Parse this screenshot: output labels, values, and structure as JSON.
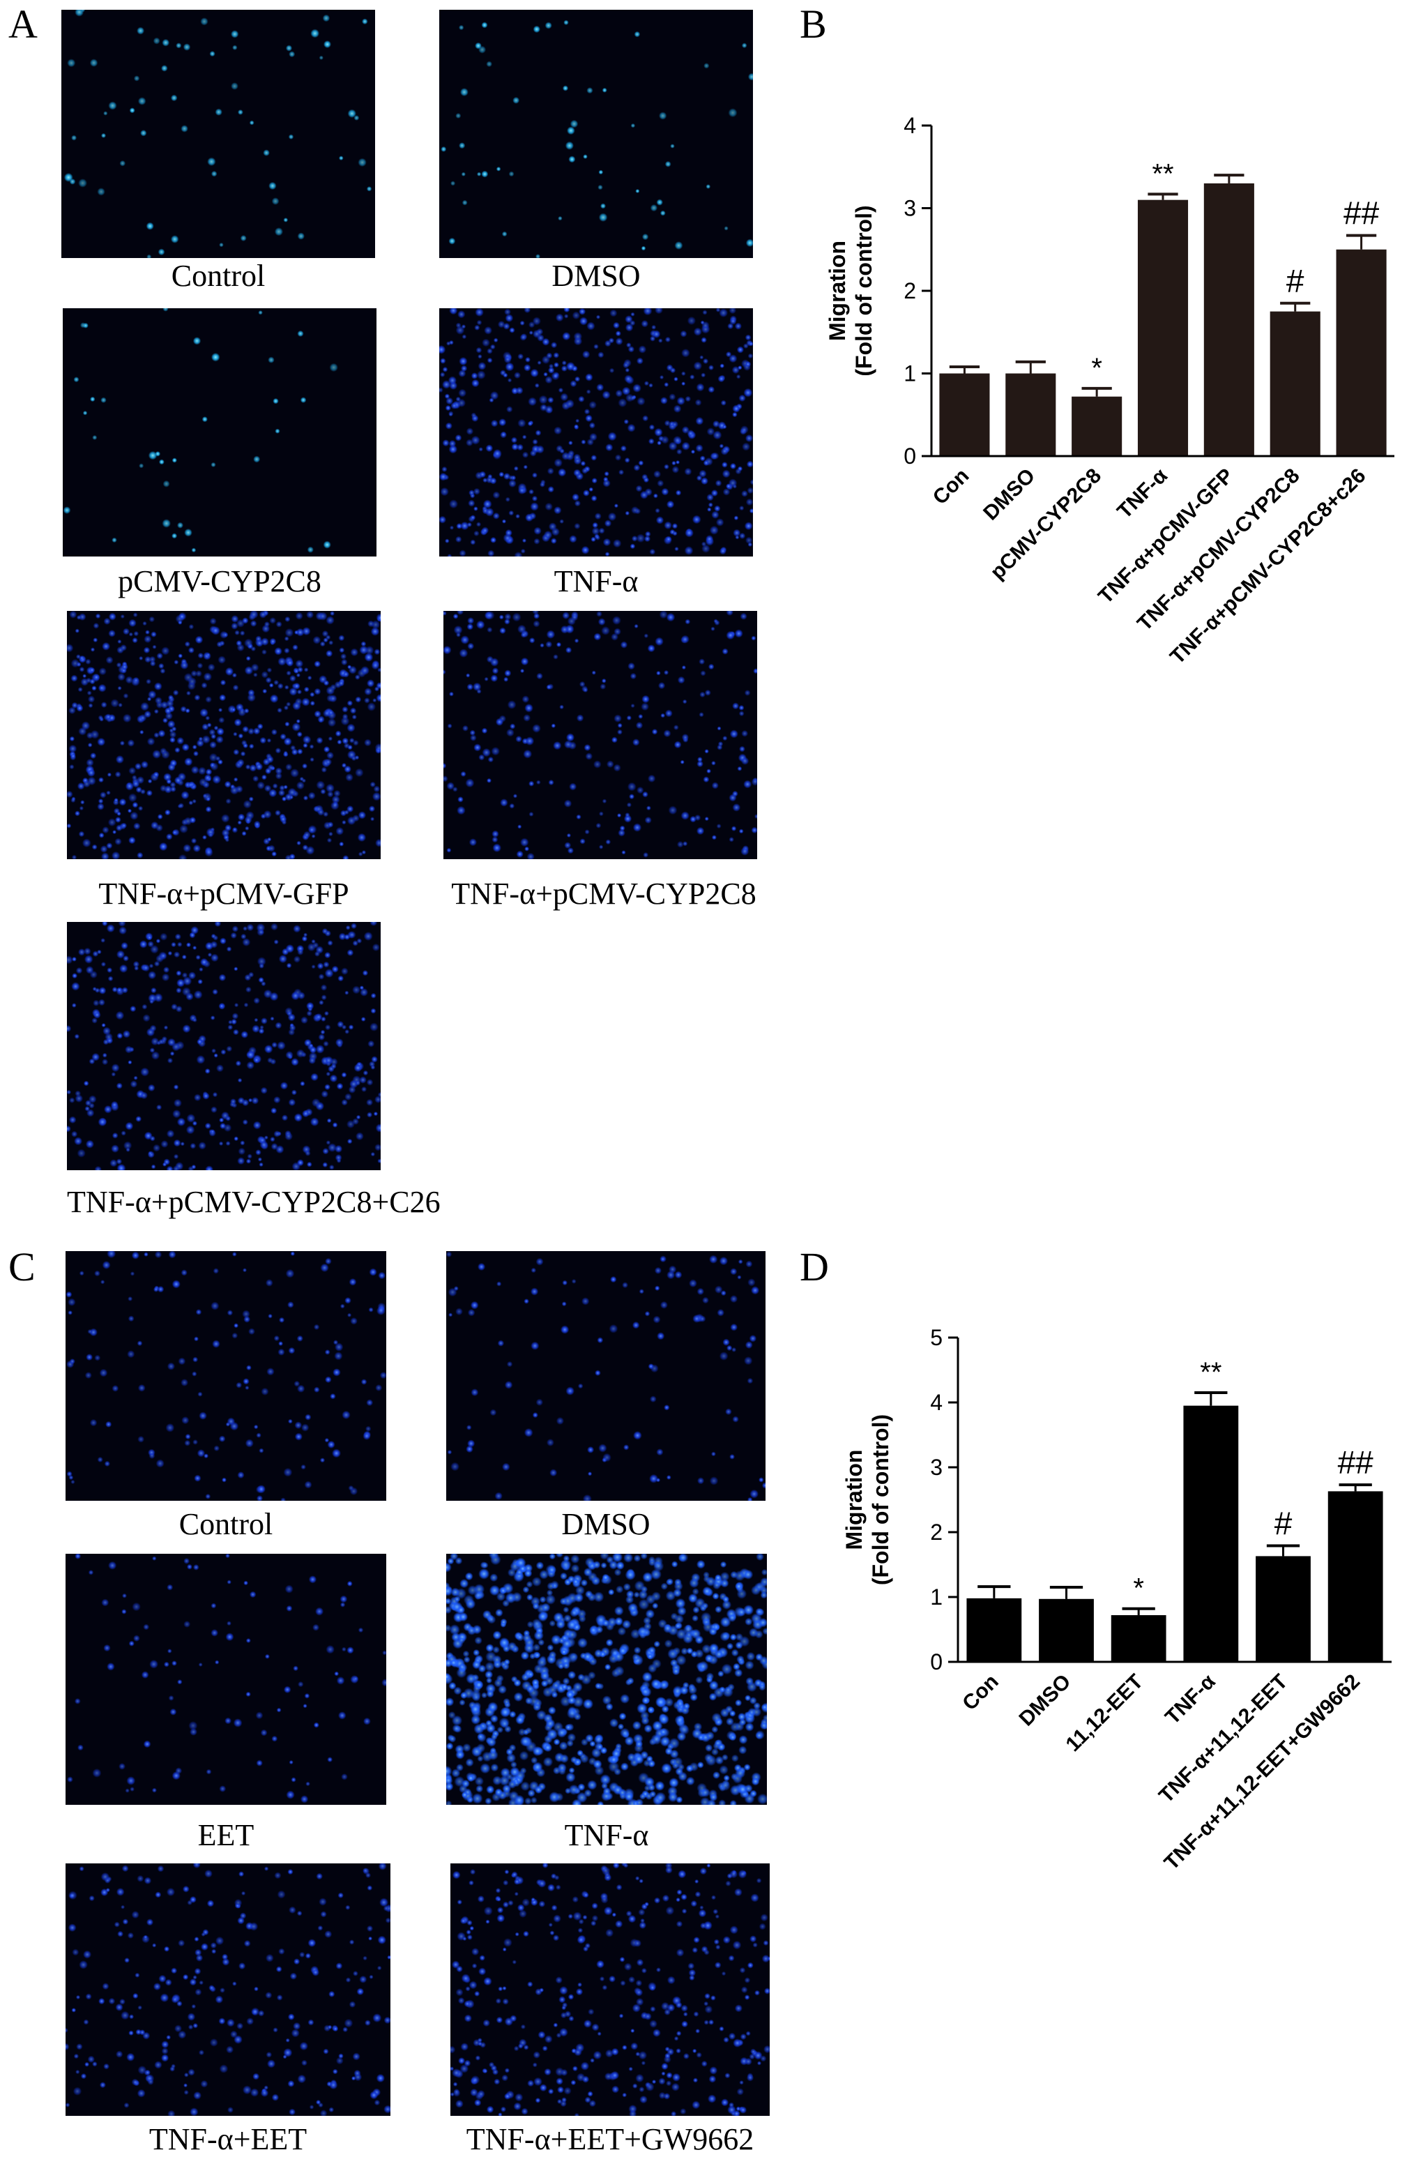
{
  "panels": {
    "a": {
      "letter": "A",
      "images": [
        {
          "label": "Control",
          "density": 60,
          "tone": "cyan",
          "seed": 11
        },
        {
          "label": "DMSO",
          "density": 55,
          "tone": "cyan",
          "seed": 23
        },
        {
          "label": "pCMV-CYP2C8",
          "density": 35,
          "tone": "cyan",
          "seed": 37
        },
        {
          "label": "TNF-α",
          "density": 520,
          "tone": "blue",
          "seed": 41
        },
        {
          "label": "TNF-α+pCMV-GFP",
          "density": 650,
          "tone": "blue",
          "seed": 53
        },
        {
          "label": "TNF-α+pCMV-CYP2C8",
          "density": 260,
          "tone": "blue",
          "seed": 67
        },
        {
          "label": "TNF-α+pCMV-CYP2C8+C26",
          "density": 480,
          "tone": "blue",
          "seed": 79
        }
      ]
    },
    "b": {
      "letter": "B"
    },
    "c": {
      "letter": "C",
      "images": [
        {
          "label": "Control",
          "density": 150,
          "tone": "blue",
          "seed": 83
        },
        {
          "label": "DMSO",
          "density": 110,
          "tone": "blue",
          "seed": 97
        },
        {
          "label": "EET",
          "density": 95,
          "tone": "blue",
          "seed": 101
        },
        {
          "label": "TNF-α",
          "density": 900,
          "tone": "bright",
          "seed": 113
        },
        {
          "label": "TNF-α+EET",
          "density": 260,
          "tone": "blue",
          "seed": 127
        },
        {
          "label": "TNF-α+EET+GW9662",
          "density": 400,
          "tone": "blue",
          "seed": 131
        }
      ]
    },
    "d": {
      "letter": "D"
    }
  },
  "colors": {
    "bar_b": "#231815",
    "bar_d": "#000000",
    "cell_blue": "#2a5bff",
    "cell_cyan": "#3ad8ff"
  },
  "chart_data": [
    {
      "type": "bar",
      "title": "",
      "ylabel_line1": "Migration",
      "ylabel_line2": "(Fold of control)",
      "xlabel": "",
      "ylim": [
        0,
        4
      ],
      "yticks": [
        0,
        1,
        2,
        3,
        4
      ],
      "categories": [
        "Con",
        "DMSO",
        "pCMV-CYP2C8",
        "TNF-α",
        "TNF-α+pCMV-GFP",
        "TNF-α+pCMV-CYP2C8",
        "TNF-α+pCMV-CYP2C8+c26"
      ],
      "values": [
        1.0,
        1.0,
        0.72,
        3.1,
        3.3,
        1.75,
        2.5
      ],
      "errors": [
        0.08,
        0.14,
        0.1,
        0.07,
        0.1,
        0.1,
        0.17
      ],
      "annotations": [
        "",
        "",
        "*",
        "**",
        "",
        "#",
        "##"
      ]
    },
    {
      "type": "bar",
      "title": "",
      "ylabel_line1": "Migration",
      "ylabel_line2": "(Fold of control)",
      "xlabel": "",
      "ylim": [
        0,
        5
      ],
      "yticks": [
        0,
        1,
        2,
        3,
        4,
        5
      ],
      "categories": [
        "Con",
        "DMSO",
        "11,12-EET",
        "TNF-α",
        "TNF-α+11,12-EET",
        "TNF-α+11,12-EET+GW9662"
      ],
      "values": [
        0.98,
        0.97,
        0.72,
        3.95,
        1.63,
        2.63
      ],
      "errors": [
        0.18,
        0.18,
        0.1,
        0.2,
        0.16,
        0.1
      ],
      "annotations": [
        "",
        "",
        "*",
        "**",
        "#",
        "##"
      ]
    }
  ]
}
